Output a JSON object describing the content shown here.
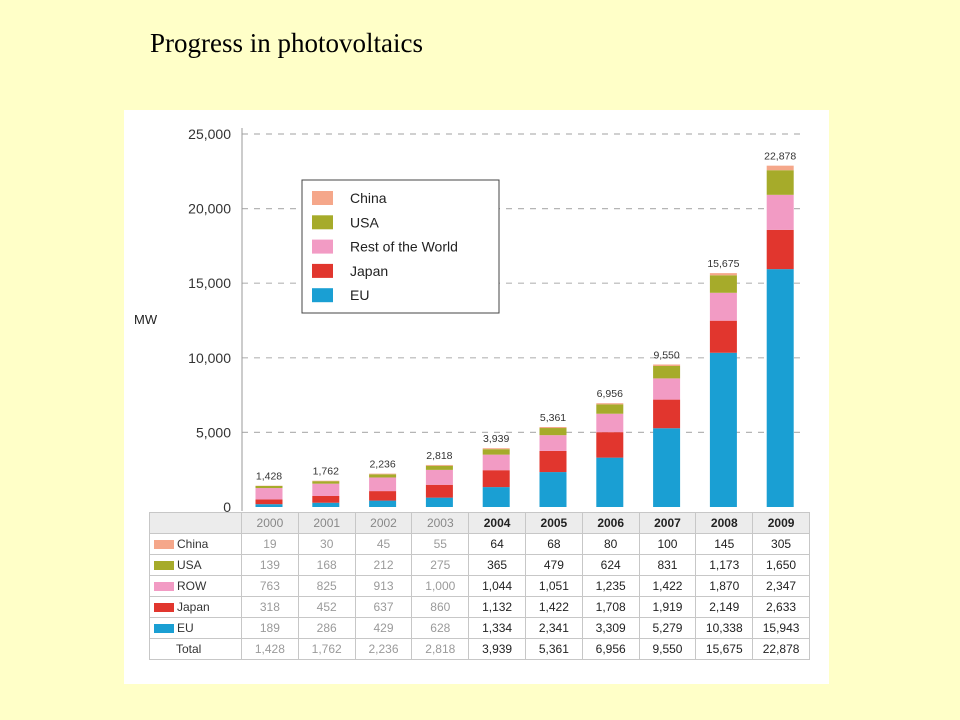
{
  "slide": {
    "title": "Progress in photovoltaics"
  },
  "chart_data": {
    "type": "bar",
    "stacked": true,
    "ylabel": "MW",
    "ylim": [
      0,
      25000
    ],
    "yticks": [
      "0",
      "5,000",
      "10,000",
      "15,000",
      "20,000",
      "25,000"
    ],
    "ytick_values": [
      0,
      5000,
      10000,
      15000,
      20000,
      25000
    ],
    "grid": true,
    "legend_position": "top-left",
    "categories": [
      "2000",
      "2001",
      "2002",
      "2003",
      "2004",
      "2005",
      "2006",
      "2007",
      "2008",
      "2009"
    ],
    "series": [
      {
        "name": "EU",
        "table_name": "EU",
        "color": "#1a9fd3",
        "values": [
          189,
          286,
          429,
          628,
          1334,
          2341,
          3309,
          5279,
          10338,
          15943
        ],
        "labels": [
          "189",
          "286",
          "429",
          "628",
          "1,334",
          "2,341",
          "3,309",
          "5,279",
          "10,338",
          "15,943"
        ]
      },
      {
        "name": "Japan",
        "table_name": "Japan",
        "color": "#e1362e",
        "values": [
          318,
          452,
          637,
          860,
          1132,
          1422,
          1708,
          1919,
          2149,
          2633
        ],
        "labels": [
          "318",
          "452",
          "637",
          "860",
          "1,132",
          "1,422",
          "1,708",
          "1,919",
          "2,149",
          "2,633"
        ]
      },
      {
        "name": "Rest of the World",
        "table_name": "ROW",
        "color": "#f29bc4",
        "values": [
          763,
          825,
          913,
          1000,
          1044,
          1051,
          1235,
          1422,
          1870,
          2347
        ],
        "labels": [
          "763",
          "825",
          "913",
          "1,000",
          "1,044",
          "1,051",
          "1,235",
          "1,422",
          "1,870",
          "2,347"
        ]
      },
      {
        "name": "USA",
        "table_name": "USA",
        "color": "#a6ab2a",
        "values": [
          139,
          168,
          212,
          275,
          365,
          479,
          624,
          831,
          1173,
          1650
        ],
        "labels": [
          "139",
          "168",
          "212",
          "275",
          "365",
          "479",
          "624",
          "831",
          "1,173",
          "1,650"
        ]
      },
      {
        "name": "China",
        "table_name": "China",
        "color": "#f5a78a",
        "values": [
          19,
          30,
          45,
          55,
          64,
          68,
          80,
          100,
          145,
          305
        ],
        "labels": [
          "19",
          "30",
          "45",
          "55",
          "64",
          "68",
          "80",
          "100",
          "145",
          "305"
        ]
      }
    ],
    "legend_order": [
      "China",
      "USA",
      "Rest of the World",
      "Japan",
      "EU"
    ],
    "table_row_order": [
      "China",
      "USA",
      "ROW",
      "Japan",
      "EU"
    ],
    "totals": [
      1428,
      1762,
      2236,
      2818,
      3939,
      5361,
      6956,
      9550,
      15675,
      22878
    ],
    "total_labels": [
      "1,428",
      "1,762",
      "2,236",
      "2,818",
      "3,939",
      "5,361",
      "6,956",
      "9,550",
      "15,675",
      "22,878"
    ],
    "total_row_label": "Total"
  }
}
